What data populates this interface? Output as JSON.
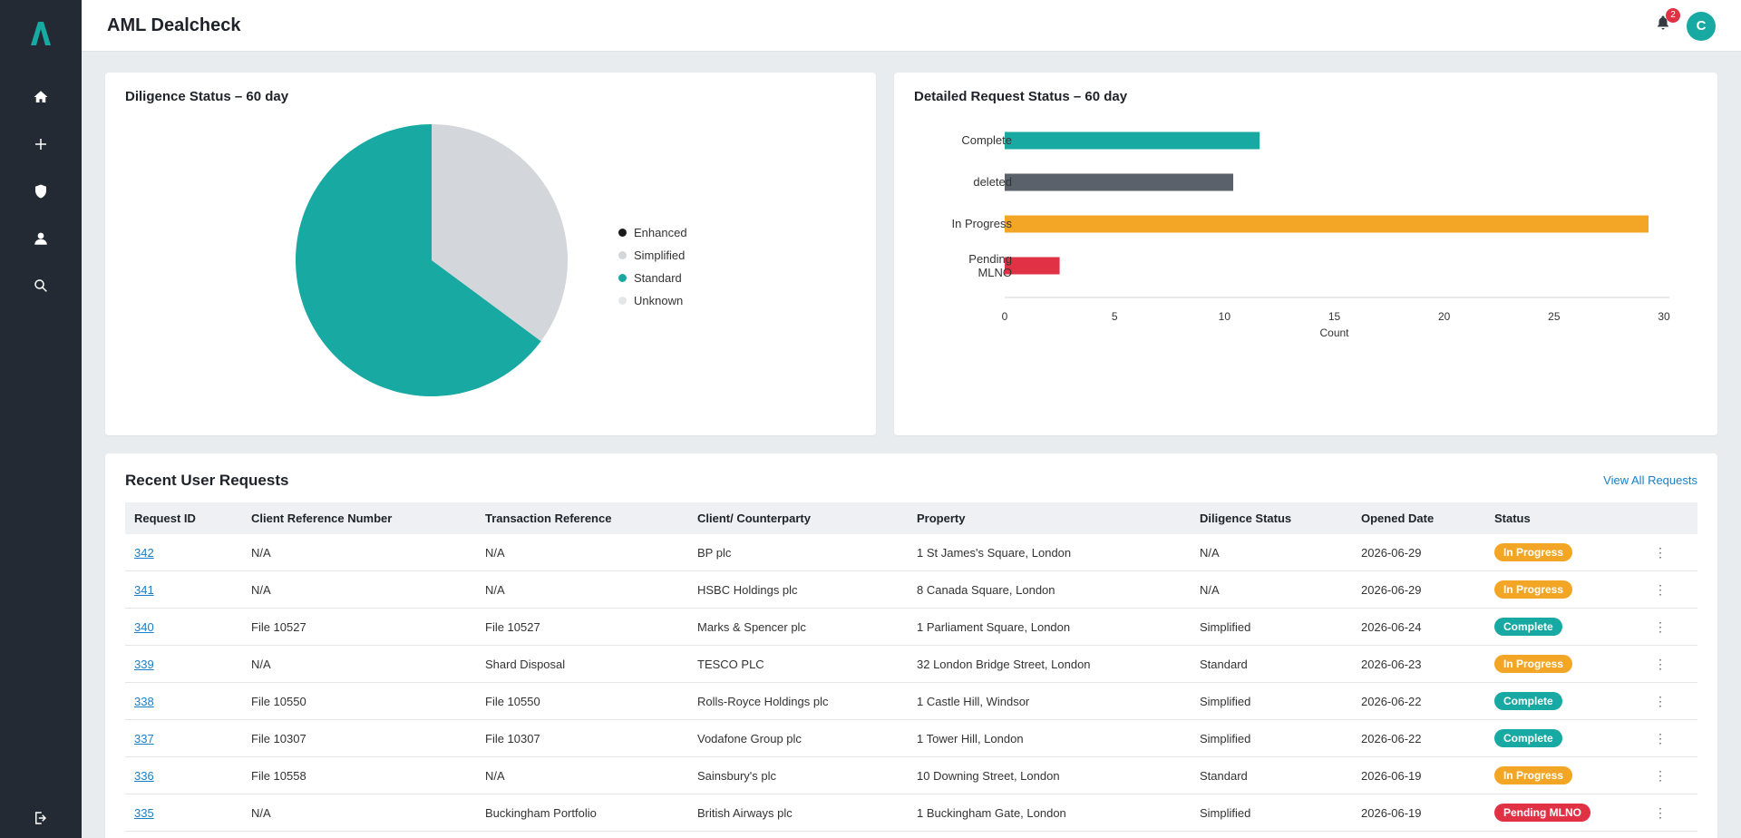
{
  "app": {
    "title": "AML Dealcheck"
  },
  "header": {
    "notification_count": "2",
    "avatar_initial": "C"
  },
  "colors": {
    "accent": "#17a9a2",
    "sidebar": "#232a33",
    "in_progress": "#f3a626",
    "complete": "#17a9a2",
    "pending": "#e03145",
    "deleted": "#5a616b"
  },
  "sidebar": {
    "items": [
      {
        "icon": "home-icon"
      },
      {
        "icon": "plus-icon"
      },
      {
        "icon": "shield-icon"
      },
      {
        "icon": "user-icon"
      },
      {
        "icon": "search-icon"
      },
      {
        "icon": "logout-icon"
      }
    ]
  },
  "diligence_card": {
    "title": "Diligence Status – 60 day"
  },
  "detail_card": {
    "title": "Detailed Request Status – 60 day"
  },
  "chart_data": [
    {
      "type": "pie",
      "title": "Diligence Status – 60 day",
      "legend_position": "right",
      "labels": [
        "Enhanced",
        "Simplified",
        "Standard",
        "Unknown"
      ],
      "values": [
        0,
        13,
        24,
        0
      ],
      "colors": [
        "#1a1a1a",
        "#d3d6da",
        "#17a9a2",
        "#e4e6e8"
      ]
    },
    {
      "type": "bar",
      "orientation": "horizontal",
      "title": "Detailed Request Status – 60 day",
      "categories": [
        "Complete",
        "deleted",
        "In Progress",
        "Pending MLNO"
      ],
      "values": [
        11.6,
        10.4,
        29.3,
        2.5
      ],
      "colors": [
        "#17a9a2",
        "#5a616b",
        "#f3a626",
        "#e03145"
      ],
      "xlabel": "Count",
      "ylabel": "",
      "xlim": [
        0,
        30
      ],
      "ticks": [
        "0",
        "5",
        "10",
        "15",
        "20",
        "25",
        "30"
      ],
      "grid": false
    }
  ],
  "requests": {
    "title": "Recent User Requests",
    "view_all_label": "View All Requests",
    "columns": [
      "Request ID",
      "Client Reference Number",
      "Transaction Reference",
      "Client/ Counterparty",
      "Property",
      "Diligence Status",
      "Opened Date",
      "Status"
    ],
    "rows": [
      {
        "id": "342",
        "client_ref": "N/A",
        "txn_ref": "N/A",
        "counterparty": "BP plc",
        "property": "1 St James's Square, London",
        "diligence": "N/A",
        "opened": "2026-06-29",
        "status": "In Progress",
        "status_color": "#f3a626"
      },
      {
        "id": "341",
        "client_ref": "N/A",
        "txn_ref": "N/A",
        "counterparty": "HSBC Holdings plc",
        "property": "8 Canada Square, London",
        "diligence": "N/A",
        "opened": "2026-06-29",
        "status": "In Progress",
        "status_color": "#f3a626"
      },
      {
        "id": "340",
        "client_ref": "File 10527",
        "txn_ref": "File 10527",
        "counterparty": "Marks & Spencer plc",
        "property": "1 Parliament Square, London",
        "diligence": "Simplified",
        "opened": "2026-06-24",
        "status": "Complete",
        "status_color": "#17a9a2"
      },
      {
        "id": "339",
        "client_ref": "N/A",
        "txn_ref": "Shard Disposal",
        "counterparty": "TESCO PLC",
        "property": "32 London Bridge Street, London",
        "diligence": "Standard",
        "opened": "2026-06-23",
        "status": "In Progress",
        "status_color": "#f3a626"
      },
      {
        "id": "338",
        "client_ref": "File 10550",
        "txn_ref": "File 10550",
        "counterparty": "Rolls-Royce Holdings plc",
        "property": "1 Castle Hill, Windsor",
        "diligence": "Simplified",
        "opened": "2026-06-22",
        "status": "Complete",
        "status_color": "#17a9a2"
      },
      {
        "id": "337",
        "client_ref": "File 10307",
        "txn_ref": "File 10307",
        "counterparty": "Vodafone Group plc",
        "property": "1 Tower Hill, London",
        "diligence": "Simplified",
        "opened": "2026-06-22",
        "status": "Complete",
        "status_color": "#17a9a2"
      },
      {
        "id": "336",
        "client_ref": "File 10558",
        "txn_ref": "N/A",
        "counterparty": "Sainsbury's plc",
        "property": "10 Downing Street, London",
        "diligence": "Standard",
        "opened": "2026-06-19",
        "status": "In Progress",
        "status_color": "#f3a626"
      },
      {
        "id": "335",
        "client_ref": "N/A",
        "txn_ref": "Buckingham Portfolio",
        "counterparty": "British Airways plc",
        "property": "1 Buckingham Gate, London",
        "diligence": "Simplified",
        "opened": "2026-06-19",
        "status": "Pending MLNO",
        "status_color": "#e03145"
      }
    ]
  }
}
